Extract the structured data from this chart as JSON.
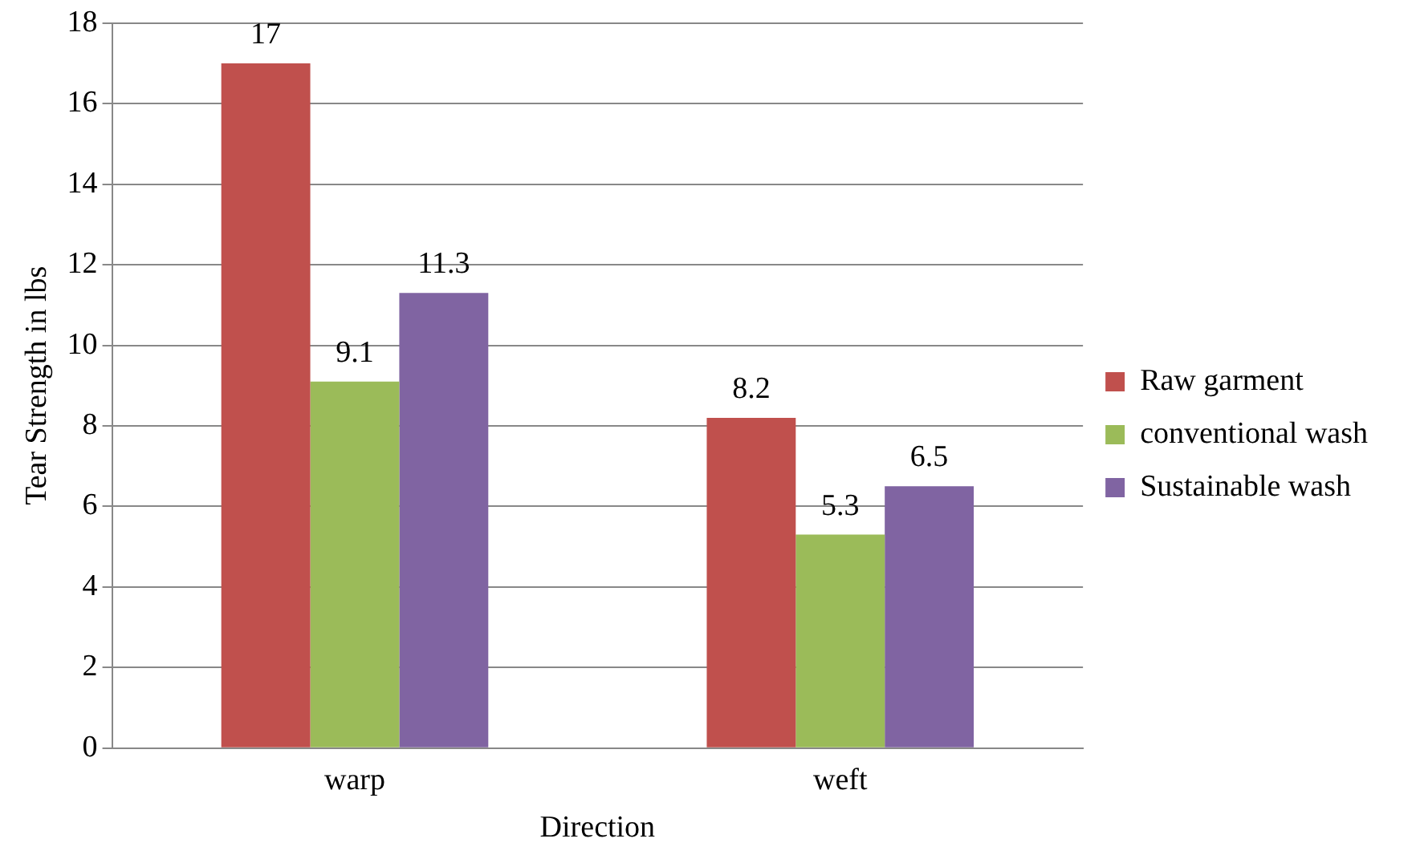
{
  "chart_data": {
    "type": "bar",
    "xlabel": "Direction",
    "ylabel": "Tear Strength in lbs",
    "categories": [
      "warp",
      "weft"
    ],
    "series": [
      {
        "name": "Raw garment",
        "color": "#c0504d",
        "values": [
          17,
          8.2
        ]
      },
      {
        "name": "conventional wash",
        "color": "#9bbb59",
        "values": [
          9.1,
          5.3
        ]
      },
      {
        "name": "Sustainable wash",
        "color": "#8064a2",
        "values": [
          11.3,
          6.5
        ]
      }
    ],
    "ylim": [
      0,
      18
    ],
    "yticks": [
      0,
      2,
      4,
      6,
      8,
      10,
      12,
      14,
      16,
      18
    ],
    "grid": "y",
    "legend": "right",
    "data_labels": true
  }
}
